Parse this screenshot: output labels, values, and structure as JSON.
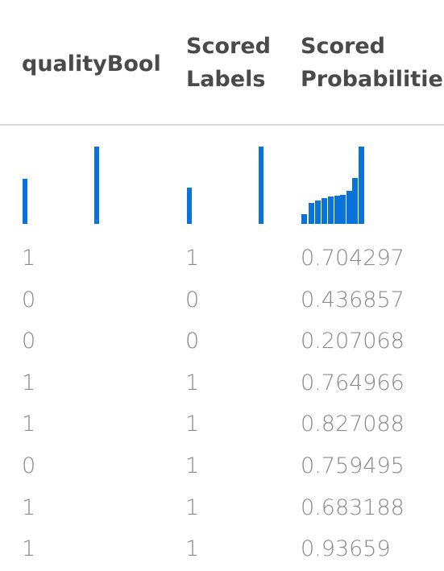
{
  "columns": [
    {
      "title_line1": "qualityBool",
      "title_line2": ""
    },
    {
      "title_line1": "Scored",
      "title_line2": "Labels"
    },
    {
      "title_line1": "Scored",
      "title_line2": "Probabilities"
    }
  ],
  "histograms": {
    "qualityBool": {
      "levels": [
        0.58,
        1.0
      ]
    },
    "scored_labels": {
      "levels": [
        0.47,
        1.0
      ]
    },
    "scored_probabilities": {
      "levels": [
        0.12,
        0.27,
        0.3,
        0.33,
        0.35,
        0.36,
        0.38,
        0.43,
        0.59,
        1.0
      ]
    }
  },
  "rows": [
    {
      "qualityBool": "1",
      "scored_labels": "1",
      "scored_probabilities": "0.704297"
    },
    {
      "qualityBool": "0",
      "scored_labels": "0",
      "scored_probabilities": "0.436857"
    },
    {
      "qualityBool": "0",
      "scored_labels": "0",
      "scored_probabilities": "0.207068"
    },
    {
      "qualityBool": "1",
      "scored_labels": "1",
      "scored_probabilities": "0.764966"
    },
    {
      "qualityBool": "1",
      "scored_labels": "1",
      "scored_probabilities": "0.827088"
    },
    {
      "qualityBool": "0",
      "scored_labels": "1",
      "scored_probabilities": "0.759495"
    },
    {
      "qualityBool": "1",
      "scored_labels": "1",
      "scored_probabilities": "0.683188"
    },
    {
      "qualityBool": "1",
      "scored_labels": "1",
      "scored_probabilities": "0.93659"
    }
  ],
  "colors": {
    "bar": "#0a73d9",
    "header_text": "#4a4a4a",
    "cell_text": "#8a8a8a",
    "divider": "#d9d9d9"
  }
}
